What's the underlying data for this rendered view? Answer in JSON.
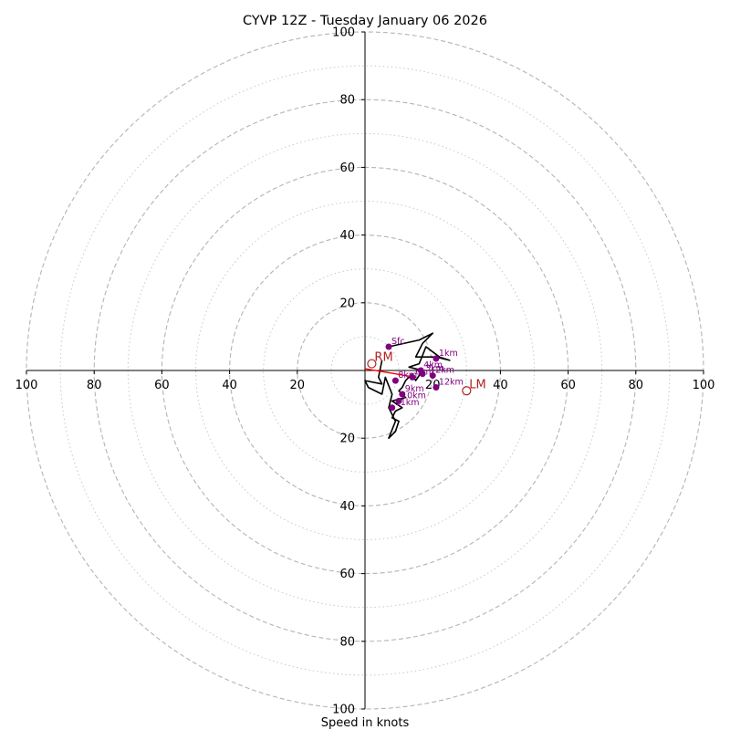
{
  "chart_data": {
    "type": "hodograph",
    "title": "CYVP 12Z - Tuesday January 06 2026",
    "xlabel": "Speed in knots",
    "ring_range": [
      0,
      100
    ],
    "major_rings": [
      20,
      40,
      60,
      80,
      100
    ],
    "minor_rings": [
      10,
      30,
      50,
      70,
      90
    ],
    "x_tick_labels": [
      "100",
      "80",
      "60",
      "40",
      "20",
      "20",
      "40",
      "60",
      "80",
      "100"
    ],
    "y_tick_labels": [
      "100",
      "80",
      "60",
      "40",
      "20",
      "20",
      "40",
      "60",
      "80",
      "100"
    ],
    "axis_ticks": [
      -100,
      -80,
      -60,
      -40,
      -20,
      20,
      40,
      60,
      80,
      100
    ],
    "hodograph_trace": {
      "name": "wind profile",
      "color": "#000000",
      "points": [
        [
          7,
          7
        ],
        [
          16,
          9
        ],
        [
          20,
          11
        ],
        [
          17,
          8
        ],
        [
          15,
          4
        ],
        [
          21,
          4
        ],
        [
          25,
          3
        ],
        [
          22,
          4
        ],
        [
          18,
          7
        ],
        [
          16,
          2
        ],
        [
          13,
          1
        ],
        [
          17,
          0
        ],
        [
          15,
          -3
        ],
        [
          14,
          -1
        ],
        [
          12,
          -3
        ],
        [
          11,
          -5
        ],
        [
          10,
          -6
        ],
        [
          12,
          -8
        ],
        [
          8,
          -9
        ],
        [
          11,
          -11
        ],
        [
          9,
          -12
        ],
        [
          8,
          -14
        ],
        [
          10,
          -15
        ],
        [
          9,
          -18
        ],
        [
          7,
          -20
        ],
        [
          9,
          -15
        ],
        [
          7,
          -11
        ],
        [
          8,
          -7
        ],
        [
          6,
          -2
        ],
        [
          5,
          -7
        ],
        [
          1,
          -5
        ],
        [
          0,
          -3
        ],
        [
          5,
          -4
        ],
        [
          4,
          -2
        ],
        [
          5,
          3
        ]
      ]
    },
    "height_markers": [
      {
        "label": "Sfc",
        "u": 7,
        "v": 7
      },
      {
        "label": "1km",
        "u": 21,
        "v": 3.5
      },
      {
        "label": "2km",
        "u": 20,
        "v": -1.5
      },
      {
        "label": "3km",
        "u": 17,
        "v": -1
      },
      {
        "label": "4km",
        "u": 16.5,
        "v": 0
      },
      {
        "label": "6km",
        "u": 14,
        "v": -2
      },
      {
        "label": "8km",
        "u": 9,
        "v": -3
      },
      {
        "label": "9km",
        "u": 11,
        "v": -7
      },
      {
        "label": "10km",
        "u": 10,
        "v": -9
      },
      {
        "label": "11km",
        "u": 8,
        "v": -11
      },
      {
        "label": "12km",
        "u": 21,
        "v": -5
      }
    ],
    "storm_motion_line": {
      "color": "#ff0000",
      "points": [
        [
          0,
          0.5
        ],
        [
          15,
          -2
        ]
      ]
    },
    "storm_motions": [
      {
        "label": "RM",
        "u": 2,
        "v": 2
      },
      {
        "label": "LM",
        "u": 30,
        "v": -6
      }
    ]
  }
}
